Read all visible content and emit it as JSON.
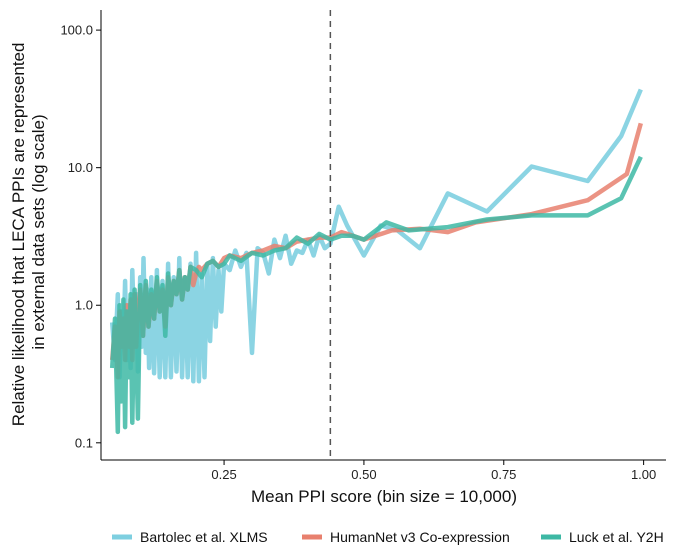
{
  "chart_data": {
    "type": "line",
    "xlabel": "Mean PPI score (bin size = 10,000)",
    "ylabel": [
      "Relative likelihood that LECA PPIs are represented",
      "in external data sets (log scale)"
    ],
    "xlim": [
      0.03,
      1.04
    ],
    "ylim": [
      0.075,
      140
    ],
    "y_scale": "log",
    "x_ticks": [
      0.25,
      0.5,
      0.75,
      1.0
    ],
    "x_tick_labels": [
      "0.25",
      "0.50",
      "0.75",
      "1.00"
    ],
    "y_ticks": [
      0.1,
      1,
      10,
      100
    ],
    "y_tick_labels": [
      "0.1",
      "1.0",
      "10.0",
      "100.0"
    ],
    "grid": false,
    "legend_position": "bottom",
    "reference_line": {
      "x": 0.44,
      "style": "dashed",
      "color": "#555555"
    },
    "series": [
      {
        "name": "Bartolec et al. XLMS",
        "color": "#7ECFE0",
        "x": [
          0.05,
          0.055,
          0.06,
          0.063,
          0.066,
          0.07,
          0.073,
          0.076,
          0.08,
          0.083,
          0.086,
          0.09,
          0.093,
          0.096,
          0.1,
          0.103,
          0.106,
          0.11,
          0.113,
          0.116,
          0.12,
          0.125,
          0.13,
          0.135,
          0.14,
          0.145,
          0.15,
          0.155,
          0.16,
          0.165,
          0.17,
          0.175,
          0.18,
          0.185,
          0.19,
          0.195,
          0.2,
          0.205,
          0.21,
          0.215,
          0.22,
          0.225,
          0.23,
          0.235,
          0.24,
          0.245,
          0.25,
          0.26,
          0.27,
          0.28,
          0.29,
          0.3,
          0.31,
          0.32,
          0.33,
          0.34,
          0.35,
          0.36,
          0.37,
          0.38,
          0.39,
          0.4,
          0.41,
          0.42,
          0.43,
          0.44,
          0.455,
          0.47,
          0.5,
          0.53,
          0.56,
          0.6,
          0.65,
          0.72,
          0.8,
          0.9,
          0.96,
          0.995
        ],
        "values": [
          0.75,
          0.4,
          1.2,
          0.3,
          0.9,
          0.5,
          1.5,
          0.4,
          1.0,
          0.35,
          1.8,
          0.5,
          1.2,
          0.33,
          1.6,
          0.5,
          2.2,
          0.45,
          1.3,
          0.35,
          1.6,
          0.32,
          1.8,
          0.3,
          1.5,
          0.3,
          2.0,
          0.3,
          1.6,
          0.33,
          2.2,
          0.3,
          1.6,
          0.3,
          2.0,
          0.28,
          2.4,
          0.28,
          1.7,
          0.3,
          2.0,
          0.55,
          2.2,
          0.7,
          1.8,
          0.9,
          2.0,
          1.8,
          2.5,
          1.9,
          2.4,
          0.45,
          2.6,
          2.4,
          1.7,
          3.0,
          2.2,
          3.2,
          2.0,
          2.5,
          2.4,
          3.0,
          2.3,
          3.2,
          2.6,
          2.8,
          5.2,
          3.8,
          2.3,
          3.8,
          3.5,
          2.6,
          6.5,
          4.8,
          10.2,
          8.0,
          17.0,
          37.0
        ]
      },
      {
        "name": "HumanNet v3 Co-expression",
        "color": "#E8806E",
        "x": [
          0.05,
          0.055,
          0.06,
          0.063,
          0.066,
          0.07,
          0.073,
          0.076,
          0.08,
          0.083,
          0.086,
          0.09,
          0.093,
          0.096,
          0.1,
          0.105,
          0.11,
          0.115,
          0.12,
          0.125,
          0.13,
          0.135,
          0.14,
          0.145,
          0.15,
          0.155,
          0.16,
          0.165,
          0.17,
          0.175,
          0.18,
          0.185,
          0.19,
          0.195,
          0.2,
          0.205,
          0.21,
          0.22,
          0.23,
          0.24,
          0.25,
          0.26,
          0.28,
          0.3,
          0.32,
          0.34,
          0.36,
          0.38,
          0.4,
          0.42,
          0.44,
          0.46,
          0.48,
          0.5,
          0.55,
          0.6,
          0.65,
          0.7,
          0.8,
          0.9,
          0.97,
          0.995
        ],
        "values": [
          0.4,
          0.7,
          0.3,
          0.9,
          0.5,
          0.8,
          0.4,
          1.0,
          0.5,
          1.1,
          0.4,
          1.2,
          0.5,
          0.9,
          1.3,
          0.6,
          1.4,
          0.7,
          1.2,
          0.8,
          1.5,
          0.9,
          1.3,
          0.7,
          1.6,
          1.0,
          1.5,
          1.2,
          1.8,
          1.1,
          1.6,
          1.3,
          1.9,
          1.4,
          1.7,
          1.9,
          1.8,
          2.0,
          2.1,
          1.9,
          2.2,
          2.3,
          2.2,
          2.4,
          2.5,
          2.7,
          2.6,
          2.9,
          3.0,
          3.1,
          3.1,
          3.4,
          3.2,
          3.0,
          3.5,
          3.6,
          3.4,
          4.0,
          4.6,
          5.8,
          9.0,
          21.0
        ]
      },
      {
        "name": "Luck et al. Y2H",
        "color": "#3DB8A4",
        "x": [
          0.05,
          0.055,
          0.06,
          0.063,
          0.066,
          0.07,
          0.073,
          0.076,
          0.08,
          0.083,
          0.086,
          0.09,
          0.093,
          0.096,
          0.1,
          0.105,
          0.11,
          0.115,
          0.12,
          0.125,
          0.13,
          0.135,
          0.14,
          0.145,
          0.15,
          0.155,
          0.16,
          0.165,
          0.17,
          0.175,
          0.18,
          0.185,
          0.19,
          0.2,
          0.21,
          0.22,
          0.23,
          0.24,
          0.25,
          0.26,
          0.28,
          0.3,
          0.32,
          0.34,
          0.36,
          0.38,
          0.4,
          0.42,
          0.44,
          0.46,
          0.48,
          0.5,
          0.54,
          0.58,
          0.65,
          0.72,
          0.8,
          0.9,
          0.96,
          0.995
        ],
        "values": [
          0.35,
          0.8,
          0.12,
          1.0,
          0.2,
          1.1,
          0.13,
          0.9,
          0.3,
          1.2,
          0.14,
          1.3,
          0.5,
          0.15,
          1.4,
          0.6,
          1.5,
          0.7,
          1.3,
          0.8,
          1.6,
          0.9,
          1.4,
          0.6,
          1.7,
          1.0,
          1.5,
          1.2,
          1.8,
          1.1,
          1.6,
          1.3,
          1.9,
          1.8,
          1.6,
          2.0,
          2.1,
          1.9,
          2.0,
          2.3,
          2.1,
          2.4,
          2.3,
          2.5,
          2.6,
          3.1,
          2.8,
          3.3,
          3.0,
          3.2,
          3.2,
          3.0,
          4.0,
          3.5,
          3.7,
          4.2,
          4.5,
          4.5,
          6.0,
          12.0
        ]
      }
    ]
  }
}
